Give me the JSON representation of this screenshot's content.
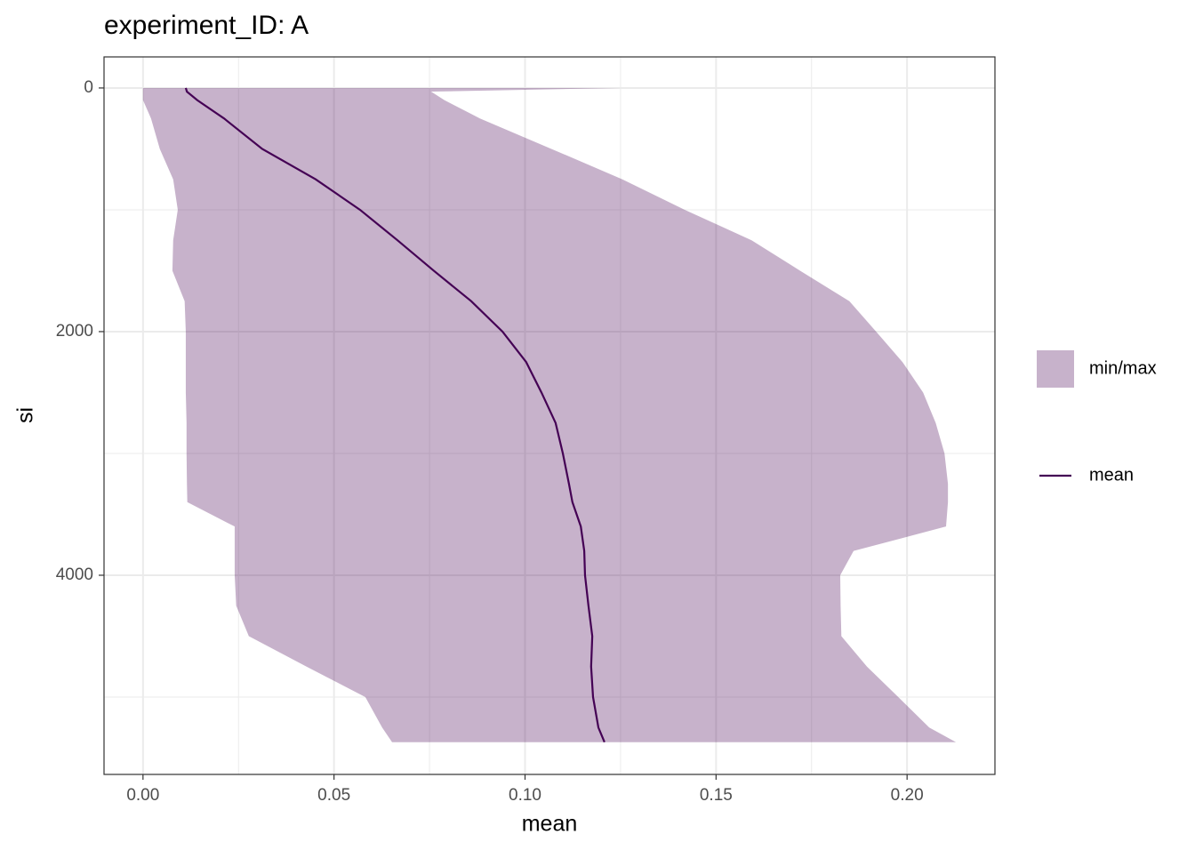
{
  "chart_data": {
    "type": "ribbon-line",
    "title": "experiment_ID: A",
    "x_label": "mean",
    "y_label": "si",
    "y": [
      0,
      30,
      100,
      250,
      500,
      750,
      1000,
      1250,
      1500,
      1750,
      2000,
      2250,
      2500,
      2750,
      3000,
      3250,
      3400,
      3600,
      3800,
      4000,
      4250,
      4500,
      4750,
      5000,
      5250,
      5370
    ],
    "series": [
      {
        "name": "min/max",
        "color": "#440154",
        "alpha": 0.3,
        "min": [
          0.0,
          0.0,
          0.0,
          0.0021,
          0.0044,
          0.0079,
          0.0091,
          0.0079,
          0.0077,
          0.0109,
          0.0112,
          0.0112,
          0.0112,
          0.0114,
          0.0114,
          0.0115,
          0.0116,
          0.024,
          0.024,
          0.024,
          0.0244,
          0.0277,
          0.0428,
          0.0582,
          0.0626,
          0.0652
        ],
        "max": [
          0.125,
          0.0754,
          0.0789,
          0.0882,
          0.1069,
          0.1255,
          0.1418,
          0.1593,
          0.172,
          0.1849,
          0.1919,
          0.1988,
          0.2042,
          0.2075,
          0.2098,
          0.2107,
          0.2107,
          0.2102,
          0.186,
          0.1825,
          0.1826,
          0.1828,
          0.1895,
          0.1977,
          0.2058,
          0.2128
        ]
      },
      {
        "name": "mean",
        "color": "#440154",
        "values": [
          0.0112,
          0.0115,
          0.0142,
          0.0212,
          0.0312,
          0.0452,
          0.0568,
          0.0666,
          0.0761,
          0.0859,
          0.0941,
          0.1003,
          0.1043,
          0.108,
          0.1099,
          0.1115,
          0.1124,
          0.1146,
          0.1155,
          0.1157,
          0.1166,
          0.1176,
          0.1173,
          0.1178,
          0.1192,
          0.1208
        ]
      }
    ],
    "xlim": [
      -0.0102,
      0.223
    ],
    "ylim": [
      -255,
      5635
    ],
    "y_reversed": true,
    "xticks": [
      {
        "value": 0,
        "label": "0.00"
      },
      {
        "value": 0.05,
        "label": "0.05"
      },
      {
        "value": 0.1,
        "label": "0.10"
      },
      {
        "value": 0.15,
        "label": "0.15"
      },
      {
        "value": 0.2,
        "label": "0.20"
      }
    ],
    "yticks": [
      0,
      2000,
      4000
    ],
    "x_minor_grid": [
      0.025,
      0.075,
      0.125,
      0.175
    ],
    "y_minor_grid": [
      1000,
      3000,
      5000
    ],
    "grid": true,
    "legend": "right"
  }
}
